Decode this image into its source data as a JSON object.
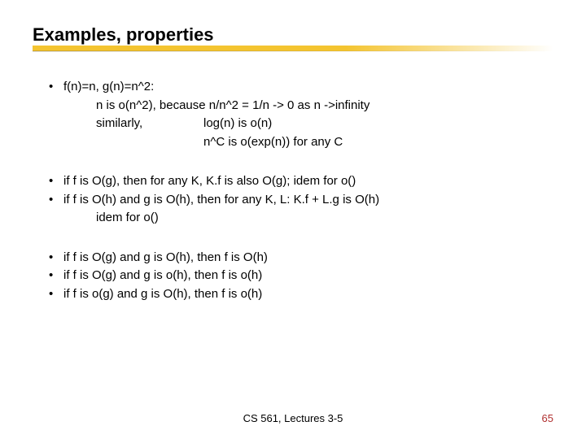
{
  "title": "Examples, properties",
  "underline_color": "#f4c430",
  "block1": {
    "b1": "f(n)=n, g(n)=n^2:",
    "line1": "n is o(n^2), because n/n^2 = 1/n -> 0 as n ->infinity",
    "sim_label": "similarly,",
    "sim_a": "log(n) is o(n)",
    "sim_b": "n^C is o(exp(n)) for any C"
  },
  "block2": {
    "b1": "if f is O(g), then for any K, K.f is also O(g); idem for o()",
    "b2": "if f is O(h) and g is O(h), then for any K, L: K.f + L.g is O(h)",
    "idem": "idem for o()"
  },
  "block3": {
    "b1": "if f is O(g) and g is O(h), then f is O(h)",
    "b2": "if f is O(g) and g is o(h), then f is o(h)",
    "b3": "if f is o(g) and g is O(h), then f is o(h)"
  },
  "footer": {
    "center": "CS 561, Lectures 3-5",
    "page": "65",
    "page_color": "#b03030"
  }
}
